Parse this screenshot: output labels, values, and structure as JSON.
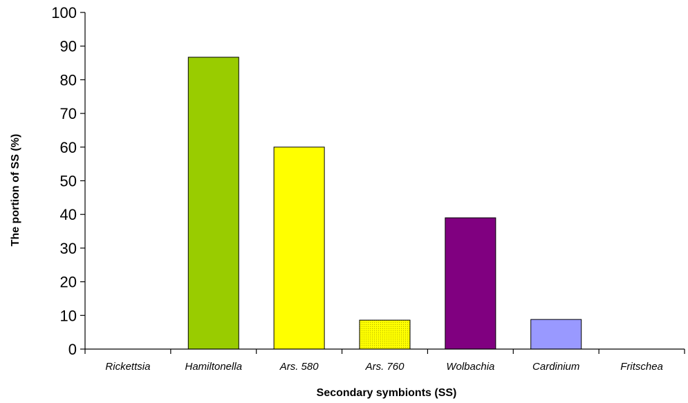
{
  "chart_data": {
    "type": "bar",
    "title": "",
    "xlabel": "Secondary symbionts (SS)",
    "ylabel": "The portion of SS (%)",
    "ylim": [
      0,
      100
    ],
    "yticks": [
      0,
      10,
      20,
      30,
      40,
      50,
      60,
      70,
      80,
      90,
      100
    ],
    "categories": [
      "Rickettsia",
      "Hamiltonella",
      "Ars. 580",
      "Ars. 760",
      "Wolbachia",
      "Cardinium",
      "Fritschea"
    ],
    "values": [
      0,
      86.7,
      60,
      8.6,
      39,
      8.8,
      0
    ],
    "colors": [
      "#ffffff",
      "#99cc00",
      "#ffff00",
      "#ffff00",
      "#800080",
      "#9999ff",
      "#ffffff"
    ],
    "grid": false,
    "legend": "none"
  }
}
